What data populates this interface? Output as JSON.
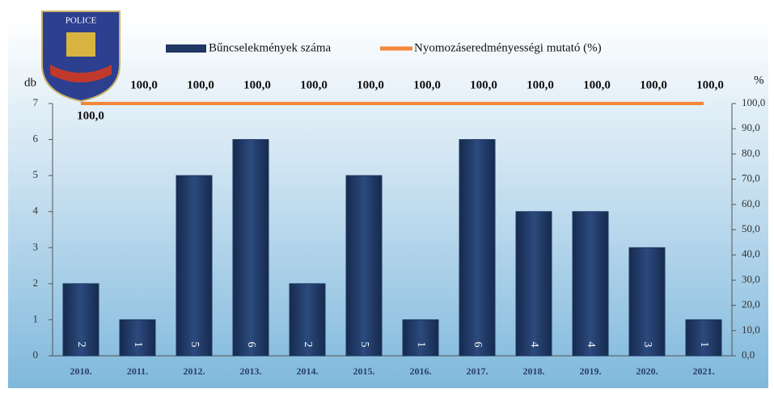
{
  "logo": "POLICE",
  "chart_data": {
    "type": "bar",
    "categories": [
      "2010.",
      "2011.",
      "2012.",
      "2013.",
      "2014.",
      "2015.",
      "2016.",
      "2017.",
      "2018.",
      "2019.",
      "2020.",
      "2021."
    ],
    "series": [
      {
        "name": "Bűncselekmények száma",
        "type": "bar",
        "color": "#1f3864",
        "values": [
          2,
          1,
          5,
          6,
          2,
          5,
          1,
          6,
          4,
          4,
          3,
          1
        ]
      },
      {
        "name": "Nyomozáseredményességi mutató (%)",
        "type": "line",
        "axis": "y2",
        "color": "#f4873b",
        "values": [
          100,
          100,
          100,
          100,
          100,
          100,
          100,
          100,
          100,
          100,
          100,
          100
        ],
        "value_labels": [
          "100,0",
          "100,0",
          "100,0",
          "100,0",
          "100,0",
          "100,0",
          "100,0",
          "100,0",
          "100,0",
          "100,0",
          "100,0",
          "100,0"
        ]
      }
    ],
    "y_label": "db",
    "y2_label": "%",
    "ylim": [
      0,
      7
    ],
    "yticks": [
      0,
      1,
      2,
      3,
      4,
      5,
      6,
      7
    ],
    "y2lim": [
      0,
      100
    ],
    "y2ticks": [
      {
        "value": 0,
        "label": "0,0"
      },
      {
        "value": 10,
        "label": "10,0"
      },
      {
        "value": 20,
        "label": "20,0"
      },
      {
        "value": 30,
        "label": "30,0"
      },
      {
        "value": 40,
        "label": "40,0"
      },
      {
        "value": 50,
        "label": "50,0"
      },
      {
        "value": 60,
        "label": "60,0"
      },
      {
        "value": 70,
        "label": "70,0"
      },
      {
        "value": 80,
        "label": "80,0"
      },
      {
        "value": 90,
        "label": "90,0"
      },
      {
        "value": 100,
        "label": "100,0"
      }
    ]
  }
}
